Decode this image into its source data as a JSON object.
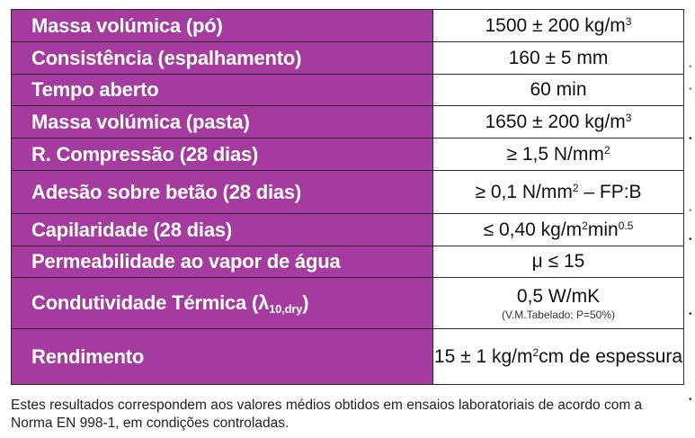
{
  "rows": [
    {
      "label": "Massa volúmica (pó)",
      "value": "1500 ± 200 kg/m",
      "value_sup": "3"
    },
    {
      "label": "Consistência (espalhamento)",
      "value": "160 ± 5 mm"
    },
    {
      "label": "Tempo aberto",
      "value": "60 min"
    },
    {
      "label": "Massa volúmica (pasta)",
      "value": "1650 ± 200 kg/m",
      "value_sup": "3"
    },
    {
      "label": "R. Compressão (28 dias)",
      "value": "≥ 1,5 N/mm",
      "value_sup": "2"
    },
    {
      "label": "Adesão sobre betão (28 dias)",
      "value": "≥ 0,1 N/mm",
      "value_sup": "2",
      "value_tail": " – FP:B"
    },
    {
      "label": "Capilaridade (28 dias)",
      "value": "≤ 0,40 kg/m",
      "value_sup": "2",
      "value_mid": "min",
      "value_sup2": "0.5"
    },
    {
      "label": "Permeabilidade ao vapor de água",
      "value": "μ ≤ 15"
    },
    {
      "label": "Condutividade Térmica (λ",
      "label_sub": "10,dry",
      "label_tail": ")",
      "value": "0,5 W/mK",
      "value_note": "(V.M.Tabelado; P=50%)"
    },
    {
      "label": "Rendimento",
      "value": "15 ± 1 kg/m",
      "value_sup": "2",
      "value_tail": "cm de espessura"
    }
  ],
  "footnote": "Estes resultados correspondem aos valores médios obtidos em ensaios laboratoriais de acordo com a Norma EN 998-1, em condições controladas.",
  "colors": {
    "label_bg": "#a53b9f",
    "label_text": "#ffffff",
    "border": "#2b2b2b",
    "edge_mark_orange": "#e8732a"
  }
}
